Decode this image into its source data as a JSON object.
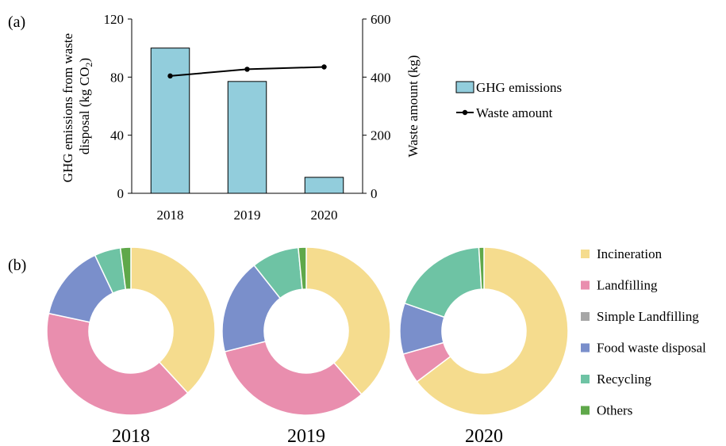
{
  "panels": {
    "a_label": "(a)",
    "b_label": "(b)"
  },
  "colors": {
    "bar_fill": "#92CDDC",
    "line": "#000000",
    "Incineration": "#F5DC8E",
    "Landfilling": "#E98EAE",
    "Simple Landfilling": "#A6A6A6",
    "Food waste disposal": "#7A8FCB",
    "Recycling": "#6EC3A4",
    "Others": "#5FA84A"
  },
  "chart_data": [
    {
      "type": "bar",
      "categories": [
        "2018",
        "2019",
        "2020"
      ],
      "series": [
        {
          "name": "GHG emissions",
          "type": "bar",
          "axis": "left",
          "values": [
            100,
            77,
            11
          ]
        },
        {
          "name": "Waste amount",
          "type": "line",
          "axis": "right",
          "values": [
            404,
            427,
            435
          ]
        }
      ],
      "ylabel_line1": "GHG emissions from waste",
      "ylabel_line2_prefix": "disposal (kg CO",
      "ylabel_line2_sub": "2",
      "ylabel_line2_suffix": ")",
      "y2label": "Waste amount (kg)",
      "ylim": [
        0,
        120
      ],
      "yticks": [
        "0",
        "40",
        "80",
        "120"
      ],
      "y2lim": [
        0,
        600
      ],
      "y2ticks": [
        "0",
        "200",
        "400",
        "600"
      ],
      "legend_position": "right"
    },
    {
      "type": "pie",
      "style": "donut",
      "categories": [
        "Incineration",
        "Landfilling",
        "Simple Landfilling",
        "Food waste disposal",
        "Recycling",
        "Others"
      ],
      "charts": [
        {
          "label": "2018",
          "values": [
            38,
            40,
            0,
            14.5,
            5,
            2
          ]
        },
        {
          "label": "2019",
          "values": [
            38,
            32,
            0,
            18,
            9,
            1.5
          ]
        },
        {
          "label": "2020",
          "values": [
            66,
            6,
            0,
            10,
            19,
            1
          ]
        }
      ],
      "legend_position": "right"
    }
  ]
}
